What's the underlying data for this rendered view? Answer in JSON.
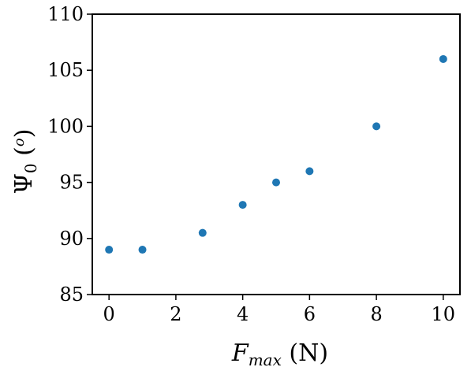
{
  "chart_data": {
    "type": "scatter",
    "title": "",
    "xlabel": "F_max (N)",
    "ylabel": "Ψ_0 (°)",
    "xlabel_parts": {
      "symbol": "F",
      "subscript": "max",
      "unit": " (N)"
    },
    "ylabel_parts": {
      "symbol": "Ψ",
      "subscript": "0",
      "unit_open": " (",
      "unit_sup": "o",
      "unit_close": ")"
    },
    "xlim": [
      -0.5,
      10.5
    ],
    "ylim": [
      85,
      110
    ],
    "xticks": [
      0,
      2,
      4,
      6,
      8,
      10
    ],
    "yticks": [
      85,
      90,
      95,
      100,
      105,
      110
    ],
    "grid": false,
    "marker_color": "#1f77b4",
    "points": [
      {
        "x": 0,
        "y": 89
      },
      {
        "x": 1,
        "y": 89
      },
      {
        "x": 2.8,
        "y": 90.5
      },
      {
        "x": 4,
        "y": 93
      },
      {
        "x": 5,
        "y": 95
      },
      {
        "x": 6,
        "y": 96
      },
      {
        "x": 8,
        "y": 100
      },
      {
        "x": 10,
        "y": 106
      }
    ]
  }
}
